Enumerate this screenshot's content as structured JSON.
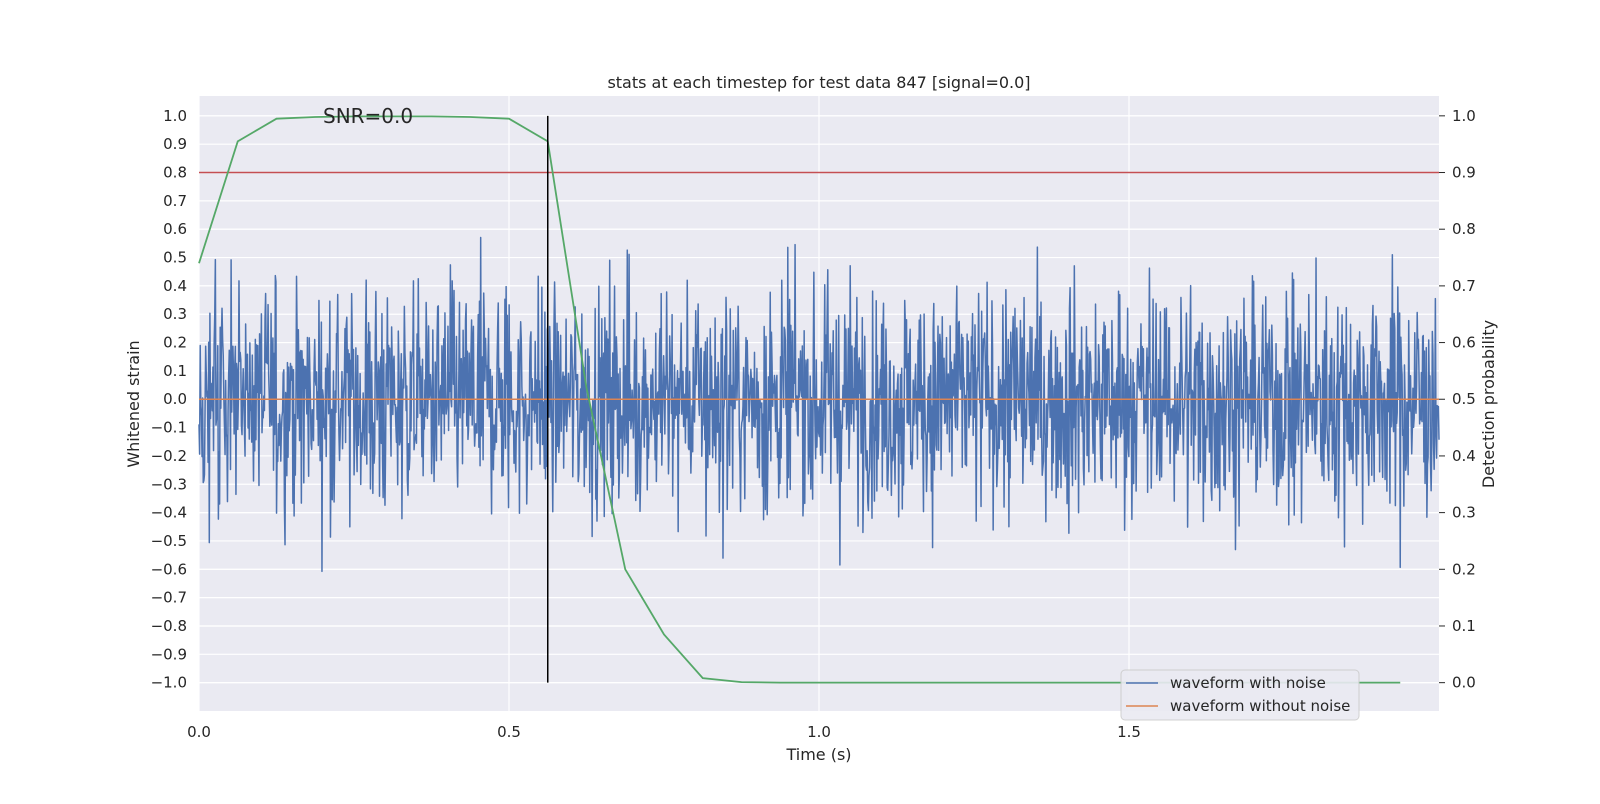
{
  "chart_data": {
    "type": "line",
    "title": "stats at each timestep for test data 847 [signal=0.0]",
    "xlabel": "Time (s)",
    "ylabel_left": "Whitened strain",
    "ylabel_right": "Detection probability",
    "annotation": "SNR=0.0",
    "xlim": [
      0.0,
      2.0
    ],
    "ylim_left": [
      -1.1,
      1.07
    ],
    "ylim_right": [
      -0.05,
      1.035
    ],
    "x_ticks": [
      0.0,
      0.5,
      1.0,
      1.5
    ],
    "x_tick_labels": [
      "0.0",
      "0.5",
      "1.0",
      "1.5"
    ],
    "y_left_ticks": [
      1.0,
      0.9,
      0.8,
      0.7,
      0.6,
      0.5,
      0.4,
      0.3,
      0.2,
      0.1,
      0.0,
      -0.1,
      -0.2,
      -0.3,
      -0.4,
      -0.5,
      -0.6,
      -0.7,
      -0.8,
      -0.9,
      -1.0
    ],
    "y_left_tick_labels": [
      "1.0",
      "0.9",
      "0.8",
      "0.7",
      "0.6",
      "0.5",
      "0.4",
      "0.3",
      "0.2",
      "0.1",
      "0.0",
      "−0.1",
      "−0.2",
      "−0.3",
      "−0.4",
      "−0.5",
      "−0.6",
      "−0.7",
      "−0.8",
      "−0.9",
      "−1.0"
    ],
    "y_right_ticks": [
      1.0,
      0.9,
      0.8,
      0.7,
      0.6,
      0.5,
      0.4,
      0.3,
      0.2,
      0.1,
      0.0
    ],
    "y_right_tick_labels": [
      "1.0",
      "0.9",
      "0.8",
      "0.7",
      "0.6",
      "0.5",
      "0.4",
      "0.3",
      "0.2",
      "0.1",
      "0.0"
    ],
    "series": [
      {
        "name": "waveform with noise",
        "color": "#4c72b0",
        "axis": "left",
        "description": "dense whitened-strain noise, approx. uniform amplitude within [-1.0, 0.97]",
        "t_range": [
          0.0,
          2.0
        ],
        "n_points": 2048,
        "amplitude": 0.36,
        "seed": 847
      },
      {
        "name": "waveform without noise",
        "color": "#dd8452",
        "axis": "left",
        "x": [
          0.0,
          2.0
        ],
        "values": [
          0.0,
          0.0
        ]
      },
      {
        "name": "detection probability",
        "color": "#55a868",
        "axis": "right",
        "x": [
          0.0,
          0.0625,
          0.125,
          0.1875,
          0.25,
          0.3125,
          0.375,
          0.4375,
          0.5,
          0.5625,
          0.625,
          0.6875,
          0.75,
          0.8125,
          0.875,
          0.9375,
          1.0,
          1.25,
          1.5,
          1.75,
          1.9375
        ],
        "values": [
          0.74,
          0.955,
          0.995,
          0.998,
          0.999,
          0.999,
          0.999,
          0.998,
          0.995,
          0.955,
          0.52,
          0.2,
          0.085,
          0.008,
          0.001,
          0.0,
          0.0,
          0.0,
          0.0,
          0.0,
          0.0
        ]
      }
    ],
    "threshold_line": {
      "axis": "right",
      "value": 0.9,
      "color": "#c44e52"
    },
    "vertical_marker": {
      "x": 0.5625,
      "y_range_right": [
        0.0,
        1.0
      ],
      "color": "#000000"
    },
    "legend": {
      "placement": "lower-right",
      "entries": [
        {
          "label": "waveform with noise",
          "color": "#4c72b0"
        },
        {
          "label": "waveform without noise",
          "color": "#dd8452"
        }
      ]
    },
    "style": {
      "axes_bg": "#eaeaf2",
      "grid_color": "#ffffff",
      "grid": true
    }
  }
}
